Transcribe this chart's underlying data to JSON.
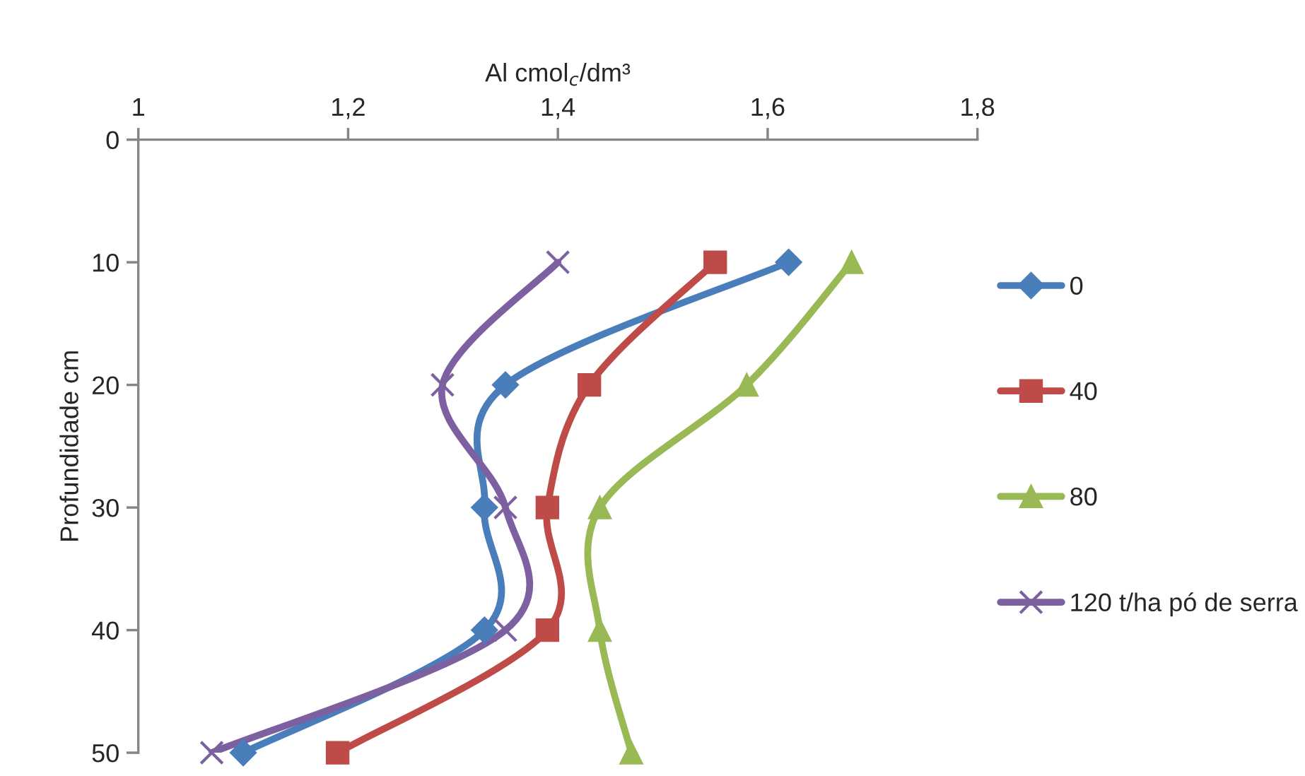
{
  "chart_data": {
    "type": "line",
    "xlabel": "Al cmol$_{c}$/dm³",
    "ylabel": "Profundidade cm",
    "xlim": [
      1,
      1.8
    ],
    "xticks": [
      1,
      {
        "value": 1.2,
        "label": "1,2"
      },
      {
        "value": 1.4,
        "label": "1,4"
      },
      {
        "value": 1.6,
        "label": "1,6"
      },
      {
        "value": 1.8,
        "label": "1,8"
      }
    ],
    "ylim": [
      50,
      0
    ],
    "yticks": [
      0,
      10,
      20,
      30,
      40,
      50
    ],
    "grid": false,
    "legend": "right",
    "line_style": "solid",
    "series": [
      {
        "name": "0",
        "color": "#4a7ebb",
        "marker": "diamond",
        "x": [
          1.62,
          1.35,
          1.33,
          1.33,
          1.1
        ],
        "values": [
          10,
          20,
          30,
          40,
          50
        ]
      },
      {
        "name": "40",
        "color": "#be4b48",
        "marker": "square",
        "x": [
          1.55,
          1.43,
          1.39,
          1.39,
          1.19
        ],
        "values": [
          10,
          20,
          30,
          40,
          50
        ]
      },
      {
        "name": "80",
        "color": "#98b954",
        "marker": "triangle",
        "x": [
          1.68,
          1.58,
          1.44,
          1.44,
          1.47
        ],
        "values": [
          10,
          20,
          30,
          40,
          50
        ]
      },
      {
        "name": "120 t/ha pó de serra",
        "color": "#7d60a0",
        "marker": "cross",
        "x": [
          1.4,
          1.29,
          1.35,
          1.35,
          1.07
        ],
        "values": [
          10,
          20,
          30,
          40,
          50
        ]
      }
    ]
  }
}
